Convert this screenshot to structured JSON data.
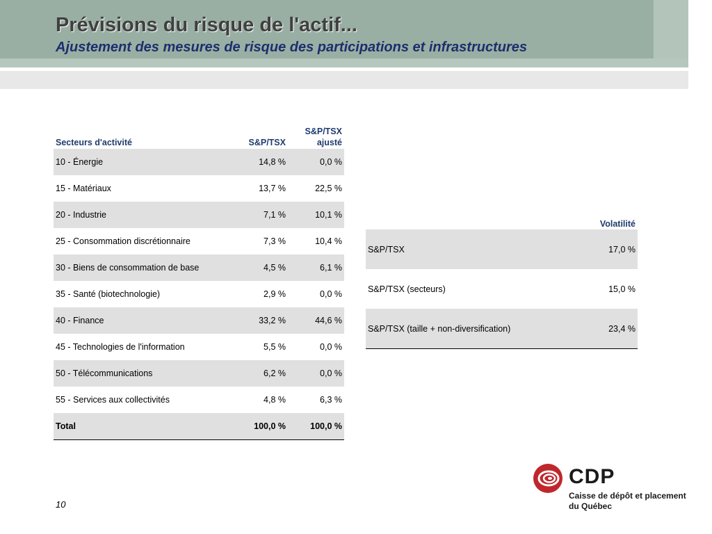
{
  "header": {
    "title": "Prévisions du risque de l'actif...",
    "subtitle": "Ajustement des mesures de risque des participations et infrastructures"
  },
  "sectors_table": {
    "headers": [
      "Secteurs d'activité",
      "S&P/TSX",
      "S&P/TSX",
      "ajusté"
    ],
    "rows": [
      {
        "sector": "10 - Énergie",
        "sp": "14,8 %",
        "adj": "0,0 %"
      },
      {
        "sector": "15 - Matériaux",
        "sp": "13,7 %",
        "adj": "22,5 %"
      },
      {
        "sector": "20 - Industrie",
        "sp": "7,1 %",
        "adj": "10,1 %"
      },
      {
        "sector": "25 - Consommation discrétionnaire",
        "sp": "7,3 %",
        "adj": "10,4 %"
      },
      {
        "sector": "30 - Biens de consommation de base",
        "sp": "4,5 %",
        "adj": "6,1 %"
      },
      {
        "sector": "35 - Santé (biotechnologie)",
        "sp": "2,9 %",
        "adj": "0,0 %"
      },
      {
        "sector": "40 - Finance",
        "sp": "33,2 %",
        "adj": "44,6 %"
      },
      {
        "sector": "45 - Technologies de l'information",
        "sp": "5,5 %",
        "adj": "0,0 %"
      },
      {
        "sector": "50 - Télécommunications",
        "sp": "6,2 %",
        "adj": "0,0 %"
      },
      {
        "sector": "55 - Services aux collectivités",
        "sp": "4,8 %",
        "adj": "6,3 %"
      }
    ],
    "total": {
      "label": "Total",
      "sp": "100,0 %",
      "adj": "100,0 %"
    }
  },
  "volatility_table": {
    "header": "Volatilité",
    "rows": [
      {
        "label": "S&P/TSX",
        "value": "17,0 %"
      },
      {
        "label": "S&P/TSX (secteurs)",
        "value": "15,0 %"
      },
      {
        "label": "S&P/TSX (taille + non-diversification)",
        "value": "23,4 %"
      }
    ]
  },
  "footer": {
    "page_number": "10",
    "logo_name": "CDP",
    "logo_line1": "Caisse de dépôt et placement",
    "logo_line2": "du Québec"
  },
  "colors": {
    "banner": "#9aafa3",
    "title_text": "#404040",
    "subtitle_text": "#1b2f6e",
    "header_text": "#1f3b6e",
    "row_shade": "#e0e0e0",
    "logo_red": "#c0272d"
  },
  "icons": {
    "logo_mark": "cdp-swirl-logo-icon"
  }
}
